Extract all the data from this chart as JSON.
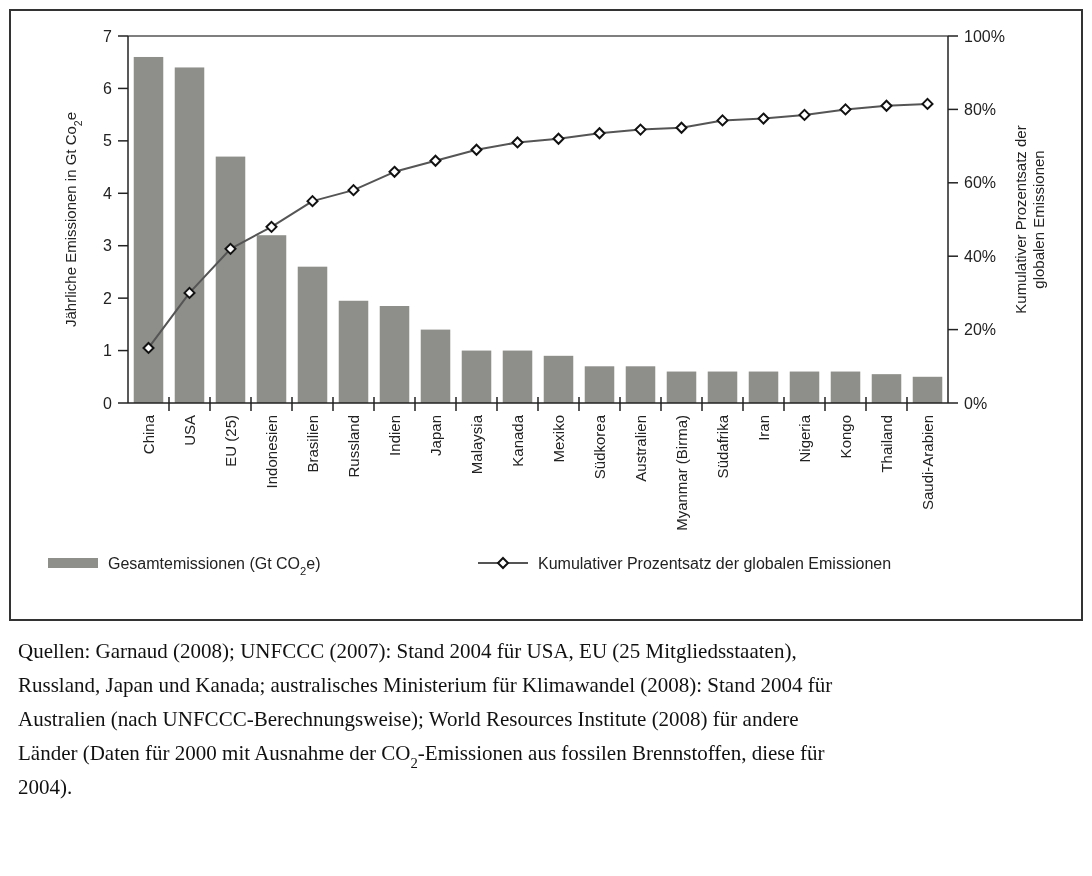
{
  "chart_data": {
    "type": "bar",
    "ylabel": "Jährliche Emissionen in Gt Co$_{2}$e",
    "y2label": "Kumulativer Prozentsatz der globalen Emissionen",
    "categories": [
      "China",
      "USA",
      "EU (25)",
      "Indonesien",
      "Brasilien",
      "Russland",
      "Indien",
      "Japan",
      "Malaysia",
      "Kanada",
      "Mexiko",
      "Südkorea",
      "Australien",
      "Myanmar (Birma)",
      "Südafrika",
      "Iran",
      "Nigeria",
      "Kongo",
      "Thailand",
      "Saudi-Arabien"
    ],
    "series": [
      {
        "name": "Gesamtemissionen (Gt CO$_{2}$e)",
        "color": "#8e8e8a",
        "values": [
          6.6,
          6.4,
          4.7,
          3.2,
          2.6,
          1.95,
          1.85,
          1.4,
          1.0,
          1.0,
          0.9,
          0.7,
          0.7,
          0.6,
          0.6,
          0.6,
          0.6,
          0.6,
          0.55,
          0.5
        ]
      },
      {
        "name": "Kumulativer Prozentsatz der globalen Emissionen",
        "type": "line",
        "axis": "y2",
        "color": "#555555",
        "marker": "diamond",
        "values": [
          15,
          30,
          42,
          48,
          55,
          58,
          63,
          66,
          69,
          71,
          72,
          73.5,
          74.5,
          75,
          77,
          77.5,
          78.5,
          80,
          81,
          81.5
        ]
      }
    ],
    "ylim": [
      0,
      7
    ],
    "yticks": [
      0,
      1,
      2,
      3,
      4,
      5,
      6,
      7
    ],
    "y2lim": [
      0,
      100
    ],
    "y2ticks": [
      {
        "value": 0,
        "label": "0%"
      },
      {
        "value": 20,
        "label": "20%"
      },
      {
        "value": 40,
        "label": "40%"
      },
      {
        "value": 60,
        "label": "60%"
      },
      {
        "value": 80,
        "label": "80%"
      },
      {
        "value": 100,
        "label": "100%"
      }
    ],
    "legend": "bottom",
    "annotations": [
      "Quellen: Garnaud (2008); UNFCCC (2007): Stand 2004 für USA, EU (25 Mitgliedsstaaten), Russland, Japan und Kanada; australisches Ministerium für Klimawandel (2008): Stand 2004 für Australien (nach UNFCCC-Berechnungsweise); World Resources Institute (2008) für andere Länder (Daten für 2000 mit Ausnahme der CO$_{2}$-Emissionen aus fossilen Brennstoffen, diese für 2004)."
    ]
  }
}
